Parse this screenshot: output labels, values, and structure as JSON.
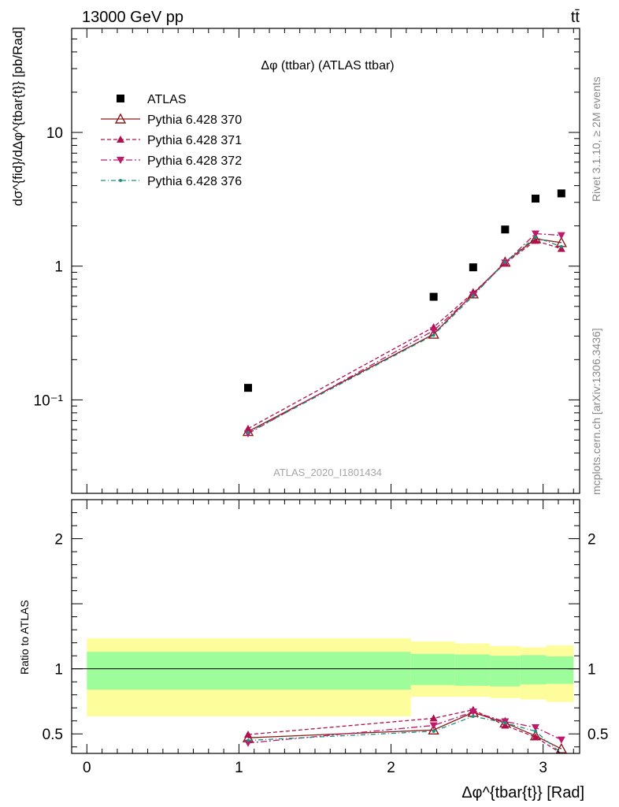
{
  "header": {
    "left": "13000 GeV pp",
    "right": "tt̄"
  },
  "side_labels": {
    "top": "Rivet 3.1.10, ≥ 2M events",
    "bottom": "mcplots.cern.ch [arXiv:1306.3436]"
  },
  "chart_data": {
    "type": "scatter",
    "title": "Δφ (ttbar) (ATLAS ttbar)",
    "watermark": "ATLAS_2020_I1801434",
    "xlabel": "Δφ^{tbar{t}} [Rad]",
    "ylabel": "dσ^{fid}/dΔφ^{tbar{t}} [pb/Rad]",
    "ratio_ylabel": "Ratio to ATLAS",
    "xlim": [
      -0.1,
      3.24
    ],
    "ylim": [
      0.02,
      60
    ],
    "yscale": "log",
    "ratio_ylim": [
      0.35,
      2.3
    ],
    "x_ticks": [
      0,
      1,
      2,
      3
    ],
    "y_ticks": [
      {
        "value": 0.1,
        "label": "10⁻¹"
      },
      {
        "value": 1,
        "label": "1"
      },
      {
        "value": 10,
        "label": "10"
      }
    ],
    "ratio_ticks": [
      {
        "value": 0.5,
        "label": "0.5"
      },
      {
        "value": 1,
        "label": "1"
      },
      {
        "value": 2,
        "label": "2"
      }
    ],
    "x": [
      1.06,
      2.28,
      2.54,
      2.75,
      2.95,
      3.12
    ],
    "bin_edges": [
      0,
      2.13,
      2.42,
      2.65,
      2.85,
      3.02,
      3.2
    ],
    "series": [
      {
        "name": "ATLAS",
        "color": "#000000",
        "marker": "square",
        "values": [
          0.123,
          0.59,
          0.98,
          1.88,
          3.2,
          3.5
        ]
      },
      {
        "name": "Pythia 6.428 370",
        "color": "#8b1a1a",
        "marker": "triangle-up-open",
        "dash": "",
        "values": [
          0.058,
          0.31,
          0.62,
          1.07,
          1.6,
          1.5
        ]
      },
      {
        "name": "Pythia 6.428 371",
        "color": "#b0104e",
        "marker": "triangle-up",
        "dash": "5,3",
        "values": [
          0.061,
          0.35,
          0.63,
          1.05,
          1.55,
          1.35
        ]
      },
      {
        "name": "Pythia 6.428 372",
        "color": "#c0186a",
        "marker": "triangle-down",
        "dash": "8,3,2,3",
        "values": [
          0.056,
          0.33,
          0.61,
          1.06,
          1.75,
          1.7
        ]
      },
      {
        "name": "Pythia 6.428 376",
        "color": "#1a9080",
        "marker": "dot",
        "dash": "6,3,1,3",
        "values": [
          0.057,
          0.305,
          0.6,
          1.07,
          1.65,
          1.4
        ]
      }
    ],
    "ratio_series": [
      {
        "name": "Pythia 6.428 370",
        "values": [
          0.47,
          0.53,
          0.665,
          0.585,
          0.485,
          0.385
        ]
      },
      {
        "name": "Pythia 6.428 371",
        "values": [
          0.495,
          0.62,
          0.685,
          0.565,
          0.475,
          0.345
        ]
      },
      {
        "name": "Pythia 6.428 372",
        "values": [
          0.43,
          0.565,
          0.67,
          0.595,
          0.55,
          0.455
        ]
      },
      {
        "name": "Pythia 6.428 376",
        "values": [
          0.45,
          0.52,
          0.635,
          0.585,
          0.52,
          0.33
        ]
      }
    ],
    "band_inner": {
      "lo": [
        0.84,
        0.875,
        0.87,
        0.865,
        0.88,
        0.885
      ],
      "hi": [
        1.13,
        1.115,
        1.11,
        1.1,
        1.105,
        1.095
      ]
    },
    "band_outer": {
      "lo": [
        0.635,
        0.785,
        0.785,
        0.775,
        0.765,
        0.745
      ],
      "hi": [
        1.235,
        1.21,
        1.195,
        1.175,
        1.165,
        1.18
      ]
    },
    "colors": {
      "band_inner": "#9efd9b",
      "band_outer": "#fdfd9b"
    }
  }
}
